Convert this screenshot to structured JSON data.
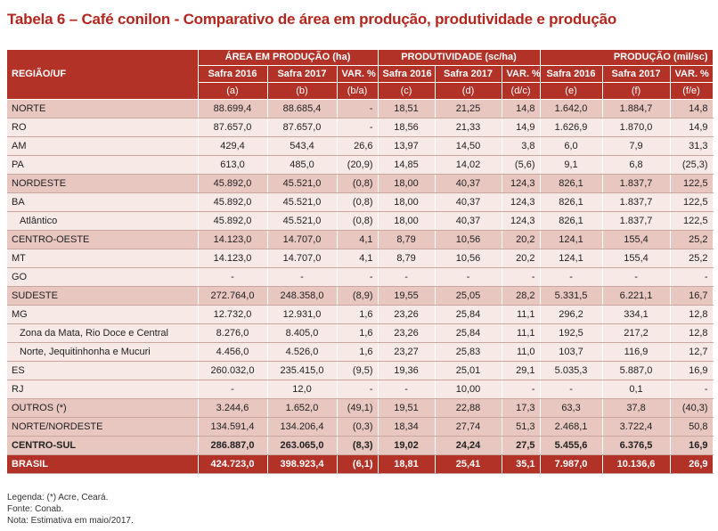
{
  "title": "Tabela 6 – Café conilon - Comparativo de área em produção, produtividade e produção",
  "header": {
    "region": "REGIÃO/UF",
    "groups": [
      "ÁREA EM PRODUÇÃO (ha)",
      "PRODUTIVIDADE (sc/ha)",
      "PRODUÇÃO  (mil/sc)"
    ],
    "cols": [
      "Safra 2016",
      "Safra 2017",
      "VAR. %",
      "Safra 2016",
      "Safra 2017",
      "VAR. %",
      "Safra 2016",
      "Safra 2017",
      "VAR. %"
    ],
    "letters": [
      "(a)",
      "(b)",
      "(b/a)",
      "(c)",
      "(d)",
      "(d/c)",
      "(e)",
      "(f)",
      "(f/e)"
    ]
  },
  "rows": [
    {
      "name": "NORTE",
      "type": "main",
      "v": [
        "88.699,4",
        "88.685,4",
        "-",
        "18,51",
        "21,25",
        "14,8",
        "1.642,0",
        "1.884,7",
        "14,8"
      ]
    },
    {
      "name": "RO",
      "type": "plain",
      "v": [
        "87.657,0",
        "87.657,0",
        "-",
        "18,56",
        "21,33",
        "14,9",
        "1.626,9",
        "1.870,0",
        "14,9"
      ]
    },
    {
      "name": "AM",
      "type": "plain",
      "v": [
        "429,4",
        "543,4",
        "26,6",
        "13,97",
        "14,50",
        "3,8",
        "6,0",
        "7,9",
        "31,3"
      ]
    },
    {
      "name": "PA",
      "type": "plain",
      "v": [
        "613,0",
        "485,0",
        "(20,9)",
        "14,85",
        "14,02",
        "(5,6)",
        "9,1",
        "6,8",
        "(25,3)"
      ]
    },
    {
      "name": "NORDESTE",
      "type": "main",
      "v": [
        "45.892,0",
        "45.521,0",
        "(0,8)",
        "18,00",
        "40,37",
        "124,3",
        "826,1",
        "1.837,7",
        "122,5"
      ]
    },
    {
      "name": "BA",
      "type": "plain",
      "v": [
        "45.892,0",
        "45.521,0",
        "(0,8)",
        "18,00",
        "40,37",
        "124,3",
        "826,1",
        "1.837,7",
        "122,5"
      ]
    },
    {
      "name": "Atlântico",
      "type": "plain",
      "sub": true,
      "v": [
        "45.892,0",
        "45.521,0",
        "(0,8)",
        "18,00",
        "40,37",
        "124,3",
        "826,1",
        "1.837,7",
        "122,5"
      ]
    },
    {
      "name": "CENTRO-OESTE",
      "type": "main",
      "v": [
        "14.123,0",
        "14.707,0",
        "4,1",
        "8,79",
        "10,56",
        "20,2",
        "124,1",
        "155,4",
        "25,2"
      ]
    },
    {
      "name": "MT",
      "type": "plain",
      "v": [
        "14.123,0",
        "14.707,0",
        "4,1",
        "8,79",
        "10,56",
        "20,2",
        "124,1",
        "155,4",
        "25,2"
      ]
    },
    {
      "name": "GO",
      "type": "plain",
      "v": [
        "-",
        "-",
        "-",
        "-",
        "-",
        "-",
        "-",
        "-",
        "-"
      ]
    },
    {
      "name": "SUDESTE",
      "type": "main",
      "v": [
        "272.764,0",
        "248.358,0",
        "(8,9)",
        "19,55",
        "25,05",
        "28,2",
        "5.331,5",
        "6.221,1",
        "16,7"
      ]
    },
    {
      "name": "MG",
      "type": "plain",
      "v": [
        "12.732,0",
        "12.931,0",
        "1,6",
        "23,26",
        "25,84",
        "11,1",
        "296,2",
        "334,1",
        "12,8"
      ]
    },
    {
      "name": "Zona da Mata, Rio Doce e Central",
      "type": "plain",
      "sub": true,
      "v": [
        "8.276,0",
        "8.405,0",
        "1,6",
        "23,26",
        "25,84",
        "11,1",
        "192,5",
        "217,2",
        "12,8"
      ]
    },
    {
      "name": "Norte, Jequitinhonha e Mucuri",
      "type": "plain",
      "sub": true,
      "v": [
        "4.456,0",
        "4.526,0",
        "1,6",
        "23,27",
        "25,83",
        "11,0",
        "103,7",
        "116,9",
        "12,7"
      ]
    },
    {
      "name": "ES",
      "type": "plain",
      "v": [
        "260.032,0",
        "235.415,0",
        "(9,5)",
        "19,36",
        "25,01",
        "29,1",
        "5.035,3",
        "5.887,0",
        "16,9"
      ]
    },
    {
      "name": "RJ",
      "type": "plain",
      "v": [
        "-",
        "12,0",
        "-",
        "-",
        "10,00",
        "-",
        "-",
        "0,1",
        "-"
      ]
    },
    {
      "name": "OUTROS (*)",
      "type": "main",
      "v": [
        "3.244,6",
        "1.652,0",
        "(49,1)",
        "19,51",
        "22,88",
        "17,3",
        "63,3",
        "37,8",
        "(40,3)"
      ]
    },
    {
      "name": "NORTE/NORDESTE",
      "type": "main",
      "v": [
        "134.591,4",
        "134.206,4",
        "(0,3)",
        "18,34",
        "27,74",
        "51,3",
        "2.468,1",
        "3.722,4",
        "50,8"
      ]
    },
    {
      "name": "CENTRO-SUL",
      "type": "total",
      "v": [
        "286.887,0",
        "263.065,0",
        "(8,3)",
        "19,02",
        "24,24",
        "27,5",
        "5.455,6",
        "6.376,5",
        "16,9"
      ]
    },
    {
      "name": "BRASIL",
      "type": "brasil",
      "v": [
        "424.723,0",
        "398.923,4",
        "(6,1)",
        "18,81",
        "25,41",
        "35,1",
        "7.987,0",
        "10.136,6",
        "26,9"
      ]
    }
  ],
  "legend": {
    "line1": "Legenda: (*) Acre, Ceará.",
    "line2": "Fonte: Conab.",
    "line3": "Nota: Estimativa em maio/2017."
  }
}
